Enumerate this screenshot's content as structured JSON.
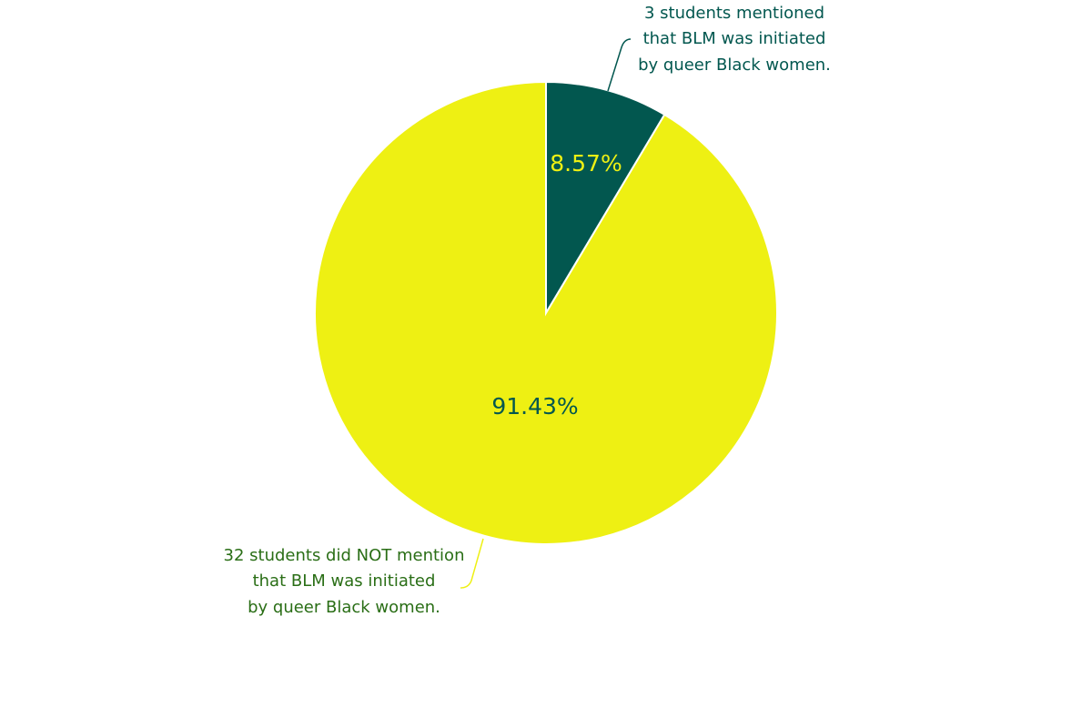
{
  "chart_data": {
    "type": "pie",
    "start_angle_deg": 0,
    "direction": "clockwise",
    "slices": [
      {
        "value": 3,
        "percent_label": "8.57%",
        "color": "#02574f",
        "label_color": "#eef013",
        "annotation": [
          "3 students mentioned",
          "that BLM was initiated",
          "by queer Black women."
        ],
        "annotation_color": "#02574f"
      },
      {
        "value": 32,
        "percent_label": "91.43%",
        "color": "#eef013",
        "label_color": "#02574f",
        "annotation": [
          "32 students did NOT mention",
          "that BLM was initiated",
          "by queer Black women."
        ],
        "annotation_color": "#2a6e16"
      }
    ],
    "slice_border_color": "#ffffff",
    "legend": "none"
  }
}
